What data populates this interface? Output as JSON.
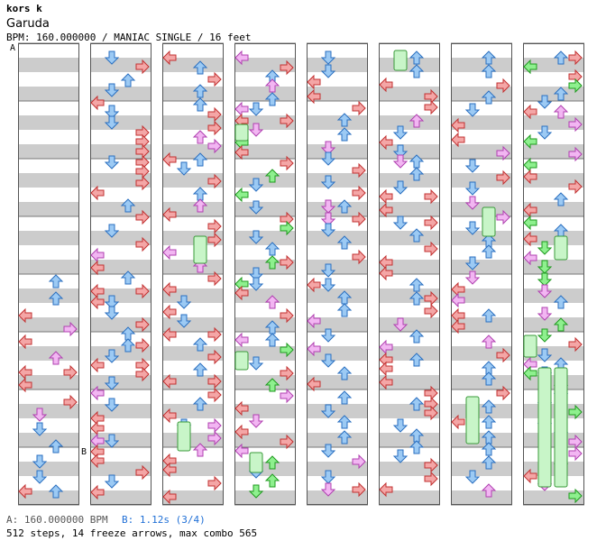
{
  "header": {
    "artist": "kors k",
    "title": "Garuda",
    "info": "BPM: 160.000000 / MANIAC SINGLE / 16 feet"
  },
  "markers": {
    "a": "A",
    "b": "B"
  },
  "legend": {
    "a": "A: 160.000000 BPM",
    "b": "B: 1.12s (3/4)"
  },
  "summary": "512 steps, 14 freeze arrows, max combo 565",
  "colors": {
    "red": "#f4a6a6",
    "red_stroke": "#c23030",
    "blue": "#9ccaf4",
    "blue_stroke": "#2a6fc0",
    "pink": "#f2b6f2",
    "pink_stroke": "#b040b0",
    "green": "#8ef08e",
    "green_stroke": "#1e9a1e",
    "freeze": "#c8f5c8",
    "freeze_stroke": "#3a9a3a",
    "stripe": "#cccccc",
    "measure_line": "#777777",
    "marker_b": "#1f6fd6"
  },
  "columns": 8
}
